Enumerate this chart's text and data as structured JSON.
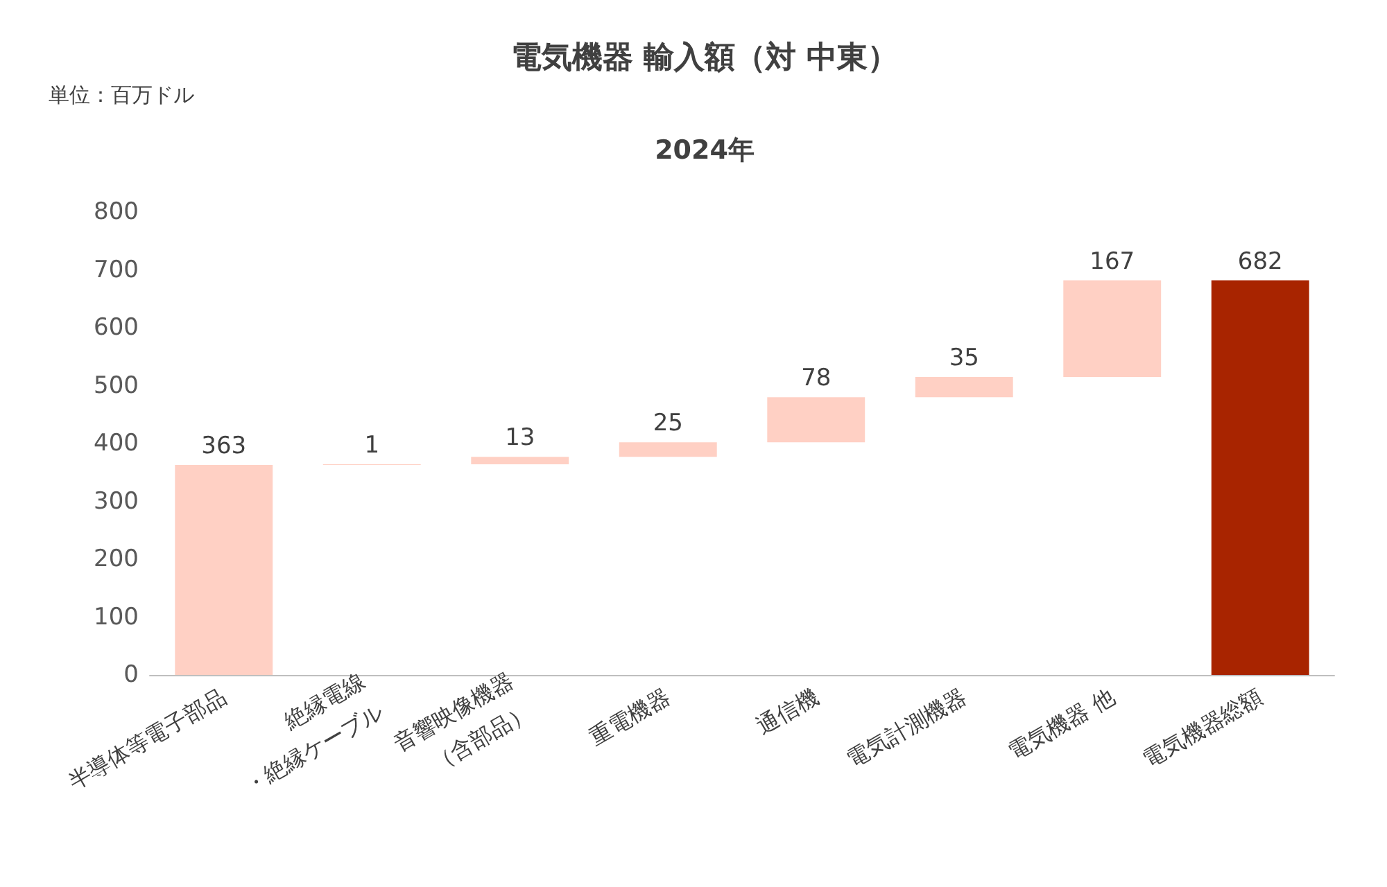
{
  "chart_data": {
    "type": "bar",
    "title": "電気機器 輸入額（対 中東）",
    "subtitle": "2024年",
    "annotations": [
      "単位：百万ドル"
    ],
    "categories": [
      "半導体等電子部品",
      "絶縁電線\n・絶縁ケーブル",
      "音響映像機器\n（含部品）",
      "重電機器",
      "通信機",
      "電気計測機器",
      "電気機器 他",
      "電気機器総額"
    ],
    "values": [
      363,
      1,
      13,
      25,
      78,
      35,
      167,
      682
    ],
    "base": [
      0,
      363,
      364,
      377,
      402,
      480,
      515,
      0
    ],
    "colors": [
      "#ffd0c4",
      "#ffd0c4",
      "#ffd0c4",
      "#ffd0c4",
      "#ffd0c4",
      "#ffd0c4",
      "#ffd0c4",
      "#a82400"
    ],
    "ylim": [
      0,
      800
    ],
    "yticks": [
      0,
      100,
      200,
      300,
      400,
      500,
      600,
      700,
      800
    ],
    "grid": false,
    "data_labels": true
  }
}
